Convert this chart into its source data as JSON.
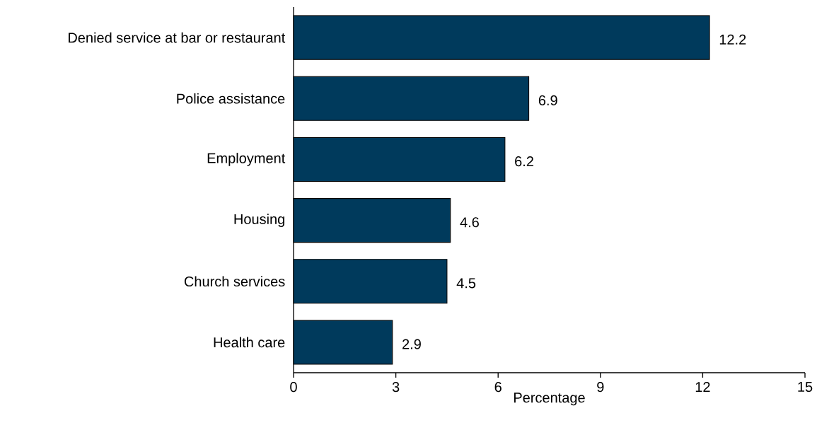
{
  "chart_data": {
    "type": "bar",
    "orientation": "horizontal",
    "xlabel": "Percentage",
    "categories": [
      "Denied service at bar or restaurant",
      "Police assistance",
      "Employment",
      "Housing",
      "Church services",
      "Health care"
    ],
    "values": [
      12.2,
      6.9,
      6.2,
      4.6,
      4.5,
      2.9
    ],
    "color": "#003a5c",
    "xlim": [
      0,
      15
    ],
    "xticks": [
      0,
      3,
      6,
      9,
      12,
      15
    ],
    "data_labels": true
  }
}
